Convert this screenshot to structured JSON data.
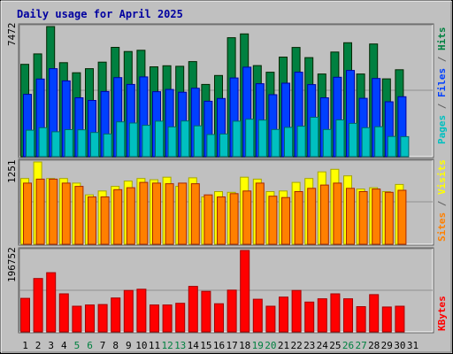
{
  "chart_data": {
    "type": "bar",
    "title": "Daily usage for April 2025",
    "categories": [
      "1",
      "2",
      "3",
      "4",
      "5",
      "6",
      "7",
      "8",
      "9",
      "10",
      "11",
      "12",
      "13",
      "14",
      "15",
      "16",
      "17",
      "18",
      "19",
      "20",
      "21",
      "22",
      "23",
      "24",
      "25",
      "26",
      "27",
      "28",
      "29",
      "30",
      "31"
    ],
    "weekend_days": [
      "5",
      "6",
      "12",
      "13",
      "19",
      "20",
      "26",
      "27"
    ],
    "panels": [
      {
        "id": "hits-files-pages",
        "max_label": "7472",
        "max_value": 7472,
        "side_labels": [
          {
            "text": "Pages",
            "color": "#00c0c0"
          },
          {
            "text": " / ",
            "color": "#606060"
          },
          {
            "text": "Files",
            "color": "#0040ff"
          },
          {
            "text": " / ",
            "color": "#606060"
          },
          {
            "text": "Hits",
            "color": "#008040"
          }
        ],
        "series": [
          {
            "name": "Hits",
            "color": "#008040",
            "values": [
              5300,
              5900,
              7472,
              5400,
              4820,
              5050,
              5430,
              6280,
              6040,
              6110,
              5160,
              5220,
              5190,
              5460,
              4150,
              4660,
              6830,
              7050,
              5230,
              4850,
              5720,
              6270,
              5690,
              4750,
              6010,
              6540,
              4750,
              6470,
              4470,
              4990,
              0
            ]
          },
          {
            "name": "Files",
            "color": "#0040ff",
            "values": [
              3580,
              4460,
              5050,
              4350,
              3380,
              3230,
              3740,
              4540,
              4150,
              4580,
              3730,
              3860,
              3700,
              3930,
              3180,
              3340,
              4520,
              5140,
              4190,
              3560,
              4220,
              4850,
              4140,
              3380,
              4560,
              4950,
              3350,
              4490,
              3150,
              3440,
              0
            ]
          },
          {
            "name": "Pages",
            "color": "#00c0c0",
            "values": [
              1520,
              1660,
              1430,
              1550,
              1540,
              1390,
              1300,
              2000,
              1930,
              1800,
              2040,
              1710,
              2050,
              1770,
              1270,
              1300,
              2040,
              2150,
              2100,
              1560,
              1680,
              1750,
              2260,
              1560,
              2110,
              1910,
              1660,
              1720,
              1160,
              1150,
              0
            ]
          }
        ]
      },
      {
        "id": "visits-sites",
        "max_label": "1251",
        "max_value": 1251,
        "side_labels": [
          {
            "text": "Sites",
            "color": "#ff8000"
          },
          {
            "text": " / ",
            "color": "#606060"
          },
          {
            "text": "Visits",
            "color": "#ffff00"
          }
        ],
        "series": [
          {
            "name": "Visits",
            "color": "#ffff00",
            "values": [
              1000,
              1251,
              1000,
              1000,
              930,
              750,
              810,
              880,
              960,
              1000,
              980,
              1020,
              880,
              1010,
              720,
              800,
              790,
              1020,
              990,
              800,
              810,
              940,
              1000,
              1100,
              1140,
              1040,
              840,
              860,
              800,
              910,
              0
            ]
          },
          {
            "name": "Sites",
            "color": "#ff8000",
            "values": [
              930,
              990,
              990,
              930,
              880,
              720,
              720,
              830,
              860,
              940,
              930,
              920,
              930,
              920,
              750,
              720,
              770,
              810,
              930,
              730,
              710,
              800,
              850,
              900,
              930,
              850,
              800,
              840,
              790,
              820,
              0
            ]
          }
        ]
      },
      {
        "id": "kbytes",
        "max_label": "196752",
        "max_value": 196752,
        "side_labels": [
          {
            "text": "KBytes",
            "color": "#ff0000"
          }
        ],
        "series": [
          {
            "name": "KBytes",
            "color": "#ff0000",
            "values": [
              81000,
              129000,
              143000,
              92000,
              62000,
              65000,
              66000,
              82000,
              100000,
              103000,
              65000,
              65000,
              69000,
              110000,
              98000,
              68000,
              101000,
              196752,
              79000,
              62000,
              84000,
              100000,
              72000,
              80000,
              92000,
              80000,
              61000,
              90000,
              60000,
              62000,
              0
            ]
          }
        ]
      }
    ]
  }
}
